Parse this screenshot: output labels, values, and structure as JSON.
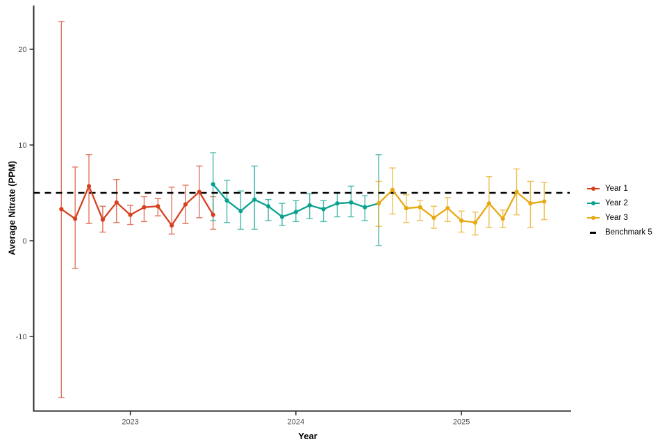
{
  "figure": {
    "background": "#ffffff",
    "text_color": "#000000",
    "axis_line_color": "#2b2b2b",
    "tick_label_color": "#4d4d4d"
  },
  "chart_data": {
    "type": "line",
    "title": "",
    "xlabel": "Year",
    "ylabel": "Average Nitrate (PPM)",
    "grid": false,
    "legend_position": "right",
    "ylim": [
      -17.8,
      24.6
    ],
    "y_ticks": [
      20,
      10,
      0,
      -10
    ],
    "y_tick_labels": [
      "20",
      "10",
      "0",
      "-10"
    ],
    "x_tick_labels": [
      "2023",
      "2024",
      "2025"
    ],
    "x_tick_month_index": [
      5,
      17,
      29
    ],
    "error_bars": true,
    "benchmark": {
      "label": "Benchmark 5",
      "value": 5,
      "color": "#000000",
      "style": "dashed"
    },
    "series": [
      {
        "name": "Year 1",
        "color": "#d6401f",
        "points": [
          {
            "date": "2022-08",
            "m": 0,
            "value": 3.3,
            "lo": -16.4,
            "hi": 22.9
          },
          {
            "date": "2022-09",
            "m": 1,
            "value": 2.3,
            "lo": -2.9,
            "hi": 7.7
          },
          {
            "date": "2022-10",
            "m": 2,
            "value": 5.7,
            "lo": 1.8,
            "hi": 9.0
          },
          {
            "date": "2022-11",
            "m": 3,
            "value": 2.2,
            "lo": 0.9,
            "hi": 3.6
          },
          {
            "date": "2022-12",
            "m": 4,
            "value": 4.0,
            "lo": 1.9,
            "hi": 6.4
          },
          {
            "date": "2023-01",
            "m": 5,
            "value": 2.7,
            "lo": 1.7,
            "hi": 3.7
          },
          {
            "date": "2023-02",
            "m": 6,
            "value": 3.5,
            "lo": 2.0,
            "hi": 4.6
          },
          {
            "date": "2023-03",
            "m": 7,
            "value": 3.6,
            "lo": 2.6,
            "hi": 4.4
          },
          {
            "date": "2023-04",
            "m": 8,
            "value": 1.6,
            "lo": 0.7,
            "hi": 5.6
          },
          {
            "date": "2023-05",
            "m": 9,
            "value": 3.8,
            "lo": 1.8,
            "hi": 5.8
          },
          {
            "date": "2023-06",
            "m": 10,
            "value": 5.1,
            "lo": 2.4,
            "hi": 7.8
          },
          {
            "date": "2023-07",
            "m": 11,
            "value": 2.7,
            "lo": 1.2,
            "hi": 4.6
          }
        ]
      },
      {
        "name": "Year 2",
        "color": "#0aa18f",
        "points": [
          {
            "date": "2023-07",
            "m": 11,
            "value": 5.9,
            "lo": 2.1,
            "hi": 9.2
          },
          {
            "date": "2023-08",
            "m": 12,
            "value": 4.2,
            "lo": 1.9,
            "hi": 6.3
          },
          {
            "date": "2023-09",
            "m": 13,
            "value": 3.1,
            "lo": 1.2,
            "hi": 5.2
          },
          {
            "date": "2023-10",
            "m": 14,
            "value": 4.3,
            "lo": 1.2,
            "hi": 7.8
          },
          {
            "date": "2023-11",
            "m": 15,
            "value": 3.6,
            "lo": 2.1,
            "hi": 4.3
          },
          {
            "date": "2023-12",
            "m": 16,
            "value": 2.5,
            "lo": 1.6,
            "hi": 3.9
          },
          {
            "date": "2024-01",
            "m": 17,
            "value": 3.0,
            "lo": 2.0,
            "hi": 4.2
          },
          {
            "date": "2024-02",
            "m": 18,
            "value": 3.7,
            "lo": 2.3,
            "hi": 4.9
          },
          {
            "date": "2024-03",
            "m": 19,
            "value": 3.3,
            "lo": 2.0,
            "hi": 4.2
          },
          {
            "date": "2024-04",
            "m": 20,
            "value": 3.9,
            "lo": 2.5,
            "hi": 5.0
          },
          {
            "date": "2024-05",
            "m": 21,
            "value": 4.0,
            "lo": 2.5,
            "hi": 5.7
          },
          {
            "date": "2024-06",
            "m": 22,
            "value": 3.5,
            "lo": 2.1,
            "hi": 4.7
          },
          {
            "date": "2024-07",
            "m": 23,
            "value": 3.9,
            "lo": -0.5,
            "hi": 9.0
          }
        ]
      },
      {
        "name": "Year 3",
        "color": "#e7a912",
        "points": [
          {
            "date": "2024-07",
            "m": 23,
            "value": 3.9,
            "lo": 1.5,
            "hi": 6.2
          },
          {
            "date": "2024-08",
            "m": 24,
            "value": 5.3,
            "lo": 2.8,
            "hi": 7.6
          },
          {
            "date": "2024-09",
            "m": 25,
            "value": 3.4,
            "lo": 1.9,
            "hi": 4.8
          },
          {
            "date": "2024-10",
            "m": 26,
            "value": 3.5,
            "lo": 2.1,
            "hi": 4.2
          },
          {
            "date": "2024-11",
            "m": 27,
            "value": 2.4,
            "lo": 1.3,
            "hi": 3.6
          },
          {
            "date": "2024-12",
            "m": 28,
            "value": 3.4,
            "lo": 2.0,
            "hi": 4.5
          },
          {
            "date": "2025-01",
            "m": 29,
            "value": 2.1,
            "lo": 0.9,
            "hi": 3.1
          },
          {
            "date": "2025-02",
            "m": 30,
            "value": 1.9,
            "lo": 0.6,
            "hi": 3.0
          },
          {
            "date": "2025-03",
            "m": 31,
            "value": 3.9,
            "lo": 1.4,
            "hi": 6.7
          },
          {
            "date": "2025-04",
            "m": 32,
            "value": 2.3,
            "lo": 1.4,
            "hi": 3.2
          },
          {
            "date": "2025-05",
            "m": 33,
            "value": 5.1,
            "lo": 2.7,
            "hi": 7.5
          },
          {
            "date": "2025-06",
            "m": 34,
            "value": 3.9,
            "lo": 1.4,
            "hi": 6.2
          },
          {
            "date": "2025-07",
            "m": 35,
            "value": 4.1,
            "lo": 2.2,
            "hi": 6.1
          }
        ]
      }
    ],
    "legend": [
      {
        "label": "Year 1",
        "color": "#d6401f",
        "marker": "line-point"
      },
      {
        "label": "Year 2",
        "color": "#0aa18f",
        "marker": "line-point"
      },
      {
        "label": "Year 3",
        "color": "#e7a912",
        "marker": "line-point"
      },
      {
        "label": "Benchmark 5",
        "color": "#000000",
        "marker": "dash"
      }
    ]
  }
}
